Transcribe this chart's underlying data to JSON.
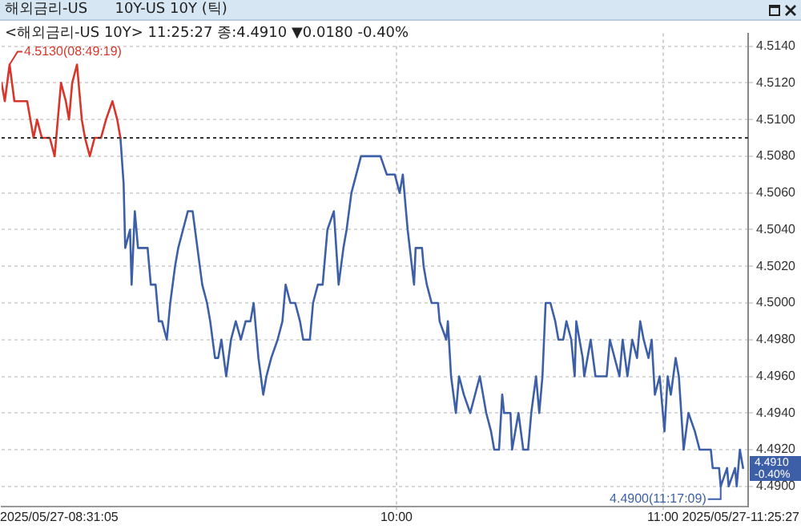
{
  "chart_data": {
    "type": "line",
    "title": "해외금리-US      10Y-US 10Y (틱)",
    "subtitle": "<해외금리-US 10Y> 11:25:27 종:4.4910 ▼0.0180 -0.40%",
    "x": [
      8.518,
      8.53,
      8.548,
      8.566,
      8.59,
      8.614,
      8.626,
      8.638,
      8.651,
      8.669,
      8.699,
      8.717,
      8.741,
      8.759,
      8.771,
      8.783,
      8.801,
      8.819,
      8.831,
      8.849,
      8.867,
      8.891,
      8.91,
      8.934,
      8.952,
      8.964,
      8.976,
      8.982,
      9.0,
      9.006,
      9.018,
      9.03,
      9.048,
      9.066,
      9.078,
      9.096,
      9.108,
      9.12,
      9.138,
      9.151,
      9.169,
      9.181,
      9.199,
      9.217,
      9.235,
      9.253,
      9.271,
      9.289,
      9.301,
      9.319,
      9.331,
      9.343,
      9.361,
      9.379,
      9.397,
      9.416,
      9.434,
      9.452,
      9.464,
      9.482,
      9.5,
      9.512,
      9.53,
      9.554,
      9.572,
      9.584,
      9.602,
      9.62,
      9.638,
      9.65,
      9.675,
      9.687,
      9.705,
      9.723,
      9.741,
      9.765,
      9.783,
      9.801,
      9.813,
      9.831,
      9.849,
      9.867,
      9.891,
      9.916,
      9.94,
      9.964,
      9.994,
      10.012,
      10.024,
      10.042,
      10.066,
      10.072,
      10.096,
      10.102,
      10.114,
      10.132,
      10.156,
      10.162,
      10.187,
      10.193,
      10.205,
      10.223,
      10.235,
      10.253,
      10.277,
      10.313,
      10.337,
      10.355,
      10.367,
      10.385,
      10.397,
      10.404,
      10.428,
      10.434,
      10.446,
      10.458,
      10.476,
      10.494,
      10.506,
      10.524,
      10.536,
      10.548,
      10.56,
      10.578,
      10.596,
      10.608,
      10.626,
      10.638,
      10.656,
      10.669,
      10.675,
      10.699,
      10.705,
      10.729,
      10.747,
      10.765,
      10.789,
      10.801,
      10.819,
      10.837,
      10.849,
      10.867,
      10.885,
      10.903,
      10.915,
      10.928,
      10.946,
      10.958,
      10.97,
      10.988,
      11.006,
      11.018,
      11.03,
      11.048,
      11.06,
      11.078,
      11.096,
      11.12,
      11.138,
      11.15,
      11.156,
      11.18,
      11.187,
      11.211,
      11.217,
      11.241,
      11.247,
      11.271,
      11.277,
      11.289,
      11.301
    ],
    "series": [
      {
        "color": "#d9362b",
        "values": [
          4.512,
          4.511,
          4.513,
          4.511,
          4.511,
          4.511,
          4.51,
          4.509,
          4.51,
          4.509,
          4.509,
          4.508,
          4.512,
          4.511,
          4.51,
          4.512,
          4.513,
          4.51,
          4.509,
          4.508,
          4.509,
          4.509,
          4.51,
          4.511,
          4.51,
          4.509,
          null,
          null,
          null,
          null,
          null,
          null,
          null,
          null,
          null,
          null,
          null,
          null,
          null,
          null,
          null,
          null,
          null,
          null,
          null,
          null,
          null,
          null,
          null,
          null,
          null,
          null,
          null,
          null,
          null,
          null,
          null,
          null,
          null,
          null,
          null,
          null,
          null,
          null,
          null,
          null,
          null,
          null,
          null,
          null,
          null,
          null,
          null,
          null,
          null,
          null,
          null,
          null,
          null,
          null,
          null,
          null,
          null,
          null,
          null,
          null,
          null,
          null,
          null,
          null,
          null,
          null,
          null,
          null,
          null,
          null,
          null,
          null,
          null,
          null,
          null,
          null,
          null,
          null,
          null,
          null,
          null,
          null,
          null,
          null,
          null,
          null,
          null,
          null,
          null,
          null,
          null,
          null,
          null,
          null,
          null,
          null,
          null,
          null,
          null,
          null,
          null,
          null,
          null,
          null,
          null,
          null,
          null,
          null,
          null,
          null,
          null,
          null,
          null,
          null,
          null,
          null,
          null,
          null,
          null,
          null,
          null,
          null,
          null,
          null,
          null,
          null,
          null,
          null,
          null,
          null,
          null,
          null,
          null,
          null,
          null,
          null,
          null,
          null,
          null,
          null,
          null,
          null,
          null,
          null,
          null
        ]
      },
      {
        "color": "#3d5fa8",
        "values": [
          null,
          null,
          null,
          null,
          null,
          null,
          null,
          null,
          null,
          null,
          null,
          null,
          null,
          null,
          null,
          null,
          null,
          null,
          null,
          null,
          null,
          null,
          null,
          null,
          null,
          4.509,
          4.5065,
          4.503,
          4.504,
          4.501,
          4.505,
          4.503,
          4.503,
          4.503,
          4.501,
          4.501,
          4.499,
          4.499,
          4.498,
          4.5,
          4.502,
          4.503,
          4.504,
          4.505,
          4.505,
          4.503,
          4.501,
          4.5,
          4.499,
          4.497,
          4.497,
          4.498,
          4.496,
          4.498,
          4.499,
          4.498,
          4.499,
          4.499,
          4.5,
          4.497,
          4.495,
          4.496,
          4.497,
          4.498,
          4.499,
          4.501,
          4.5,
          4.5,
          4.499,
          4.498,
          4.498,
          4.5,
          4.501,
          4.501,
          4.504,
          4.505,
          4.501,
          4.503,
          4.504,
          4.506,
          4.507,
          4.508,
          4.508,
          4.508,
          4.508,
          4.507,
          4.507,
          4.506,
          4.507,
          4.504,
          4.501,
          4.503,
          4.503,
          4.502,
          4.501,
          4.5,
          4.5,
          4.499,
          4.498,
          4.499,
          4.496,
          4.494,
          4.496,
          4.495,
          4.494,
          4.496,
          4.494,
          4.493,
          4.492,
          4.492,
          4.495,
          4.494,
          4.494,
          4.492,
          4.493,
          4.494,
          4.492,
          4.492,
          4.494,
          4.496,
          4.494,
          4.496,
          4.5,
          4.5,
          4.499,
          4.498,
          4.498,
          4.499,
          4.498,
          4.496,
          4.499,
          4.497,
          4.496,
          4.498,
          4.496,
          4.496,
          4.496,
          4.498,
          4.497,
          4.496,
          4.498,
          4.496,
          4.498,
          4.497,
          4.499,
          4.498,
          4.497,
          4.498,
          4.495,
          4.496,
          4.493,
          4.496,
          4.495,
          4.497,
          4.496,
          4.492,
          4.494,
          4.493,
          4.492,
          4.492,
          4.492,
          4.492,
          4.491,
          4.491,
          4.49,
          4.491,
          4.49,
          4.491,
          4.49,
          4.492,
          4.491
        ]
      }
    ],
    "xlim": [
      8.518,
      11.32
    ],
    "xticks": [
      {
        "value": 10,
        "label": "10:00"
      },
      {
        "value": 11,
        "label": "11:00"
      }
    ],
    "ylim": [
      4.4889,
      4.5147
    ],
    "yticks": [
      {
        "value": 4.49,
        "label": "4.4900"
      },
      {
        "value": 4.492,
        "label": "4.4920"
      },
      {
        "value": 4.494,
        "label": "4.4940"
      },
      {
        "value": 4.496,
        "label": "4.4960"
      },
      {
        "value": 4.498,
        "label": "4.4980"
      },
      {
        "value": 4.5,
        "label": "4.5000"
      },
      {
        "value": 4.502,
        "label": "4.5020"
      },
      {
        "value": 4.504,
        "label": "4.5040"
      },
      {
        "value": 4.506,
        "label": "4.5060"
      },
      {
        "value": 4.508,
        "label": "4.5080"
      },
      {
        "value": 4.51,
        "label": "4.5100"
      },
      {
        "value": 4.512,
        "label": "4.5120"
      },
      {
        "value": 4.514,
        "label": "4.5140"
      }
    ],
    "ref_lines": [
      {
        "axis": "y",
        "value": 4.509,
        "color": "#333333",
        "line_style": "dotted"
      }
    ],
    "annotations": [
      "4.5130(08:49:19)",
      "4.4900(11:17:09)",
      "4.4910",
      "-0.40%",
      "2025/05/27-08:31:05",
      "2025/05/27-11:25:27"
    ],
    "grid": true,
    "legend": false
  }
}
